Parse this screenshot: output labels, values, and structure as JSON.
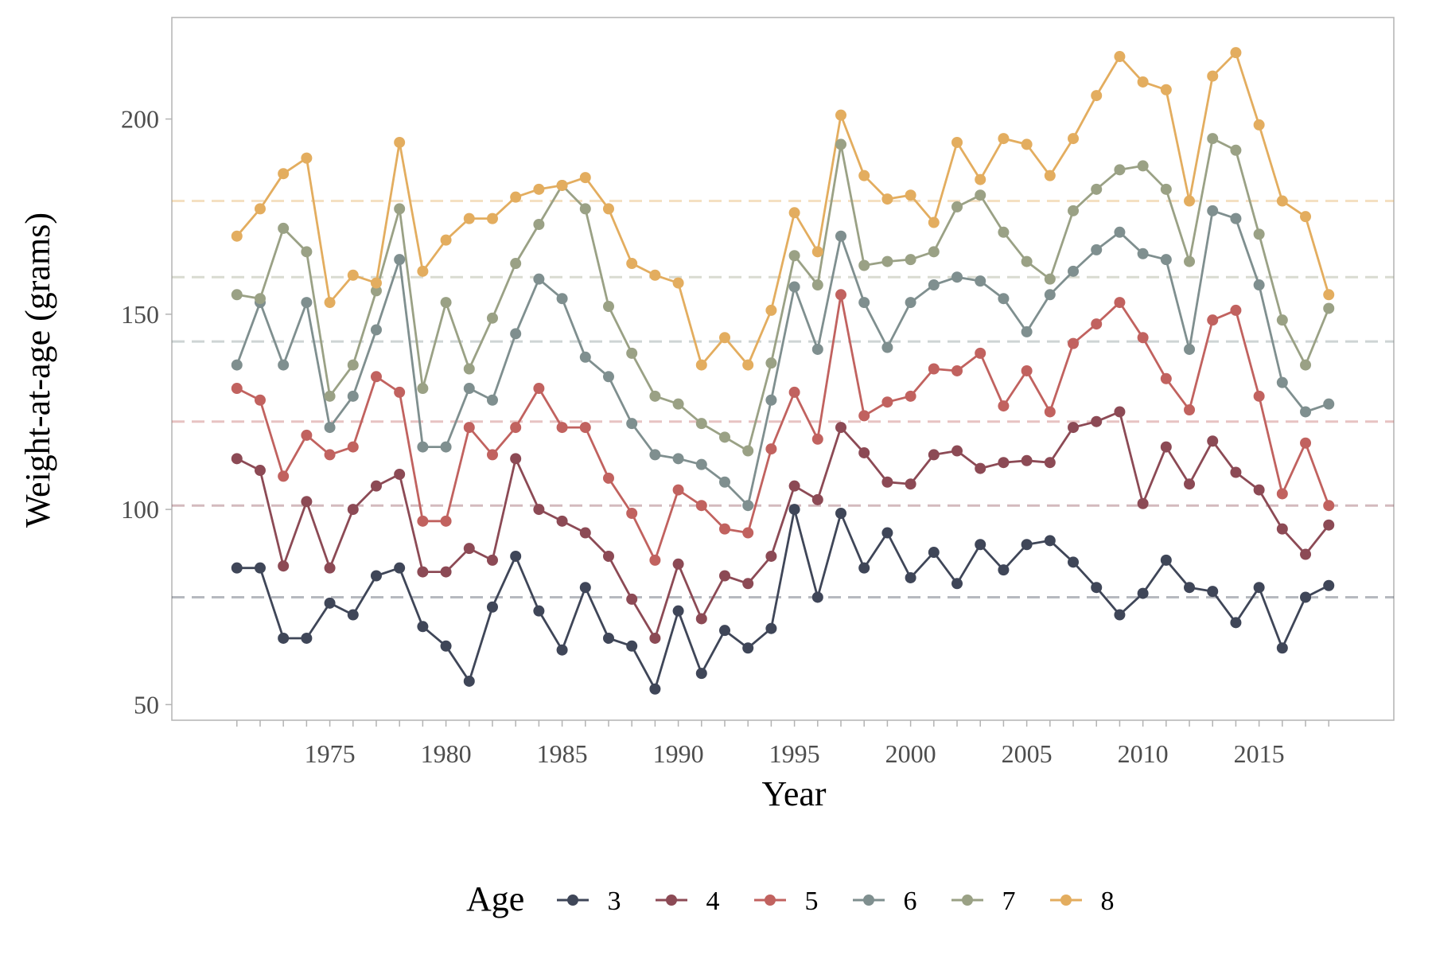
{
  "chart_data": {
    "type": "line",
    "xlabel": "Year",
    "ylabel": "Weight-at-age (grams)",
    "xlim": [
      1968.2,
      2020.8
    ],
    "ylim": [
      46,
      226
    ],
    "x_tick_labels": [
      "1975",
      "1980",
      "1985",
      "1990",
      "1995",
      "2000",
      "2005",
      "2010",
      "2015"
    ],
    "y_tick_labels": [
      "50",
      "100",
      "150",
      "200"
    ],
    "grid": false,
    "legend": {
      "title": "Age",
      "position": "bottom"
    },
    "x": [
      1971,
      1972,
      1973,
      1974,
      1975,
      1976,
      1977,
      1978,
      1979,
      1980,
      1981,
      1982,
      1983,
      1984,
      1985,
      1986,
      1987,
      1988,
      1989,
      1990,
      1991,
      1992,
      1993,
      1994,
      1995,
      1996,
      1997,
      1998,
      1999,
      2000,
      2001,
      2002,
      2003,
      2004,
      2005,
      2006,
      2007,
      2008,
      2009,
      2010,
      2011,
      2012,
      2013,
      2014,
      2015,
      2016,
      2017,
      2018
    ],
    "series": [
      {
        "name": "3",
        "color": "#3f4658",
        "mean": 77.5,
        "values": [
          85,
          85,
          67,
          67,
          76,
          73,
          83,
          85,
          70,
          65,
          56,
          75,
          88,
          74,
          64,
          80,
          67,
          65,
          54,
          74,
          58,
          69,
          64.5,
          69.5,
          100,
          77.5,
          99,
          85,
          94,
          82.5,
          89,
          81,
          91,
          84.5,
          91,
          92,
          86.5,
          80,
          73,
          78.5,
          87,
          80,
          79,
          71,
          80,
          64.5,
          77.5,
          80.5
        ]
      },
      {
        "name": "4",
        "color": "#8c4a55",
        "mean": 101,
        "values": [
          113,
          110,
          85.5,
          102,
          85,
          100,
          106,
          109,
          84,
          84,
          90,
          87,
          113,
          100,
          97,
          94,
          88,
          77,
          67,
          86,
          72,
          83,
          81,
          88,
          106,
          102.5,
          121,
          114.5,
          107,
          106.5,
          114,
          115,
          110.5,
          112,
          112.5,
          112,
          121,
          122.5,
          125,
          101.5,
          116,
          106.5,
          117.5,
          109.5,
          105,
          95,
          88.5,
          96
        ]
      },
      {
        "name": "5",
        "color": "#c1625f",
        "mean": 122.5,
        "values": [
          131,
          128,
          108.5,
          119,
          114,
          116,
          134,
          130,
          97,
          97,
          121,
          114,
          121,
          131,
          121,
          121,
          108,
          99,
          87,
          105,
          101,
          95,
          94,
          115.5,
          130,
          118,
          155,
          124,
          127.5,
          129,
          136,
          135.5,
          140,
          126.5,
          135.5,
          125,
          142.5,
          147.5,
          153,
          144,
          133.5,
          125.5,
          148.5,
          151,
          129,
          104,
          117,
          101
        ]
      },
      {
        "name": "6",
        "color": "#7f8f8f",
        "mean": 143,
        "values": [
          137,
          153,
          137,
          153,
          121,
          129,
          146,
          164,
          116,
          116,
          131,
          128,
          145,
          159,
          154,
          139,
          134,
          122,
          114,
          113,
          111.5,
          107,
          101,
          128,
          157,
          141,
          170,
          153,
          141.5,
          153,
          157.5,
          159.5,
          158.5,
          154,
          145.5,
          155,
          161,
          166.5,
          171,
          165.5,
          164,
          141,
          176.5,
          174.5,
          157.5,
          132.5,
          125,
          127
        ]
      },
      {
        "name": "7",
        "color": "#9aa185",
        "mean": 159.5,
        "values": [
          155,
          154,
          172,
          166,
          129,
          137,
          156,
          177,
          131,
          153,
          136,
          149,
          163,
          173,
          183,
          177,
          152,
          140,
          129,
          127,
          122,
          118.5,
          115,
          137.5,
          165,
          157.5,
          193.5,
          162.5,
          163.5,
          164,
          166,
          177.5,
          180.5,
          171,
          163.5,
          159,
          176.5,
          182,
          187,
          188,
          182,
          163.5,
          195,
          192,
          170.5,
          148.5,
          137,
          151.5
        ]
      },
      {
        "name": "8",
        "color": "#e3ad5f",
        "mean": 179,
        "values": [
          170,
          177,
          186,
          190,
          153,
          160,
          158,
          194,
          161,
          169,
          174.5,
          174.5,
          180,
          182,
          183,
          185,
          177,
          163,
          160,
          158,
          137,
          144,
          137,
          151,
          176,
          166,
          201,
          185.5,
          179.5,
          180.5,
          173.5,
          194,
          184.5,
          195,
          193.5,
          185.5,
          195,
          206,
          216,
          209.5,
          207.5,
          179,
          211,
          217,
          198.5,
          179,
          175,
          155
        ]
      }
    ]
  }
}
